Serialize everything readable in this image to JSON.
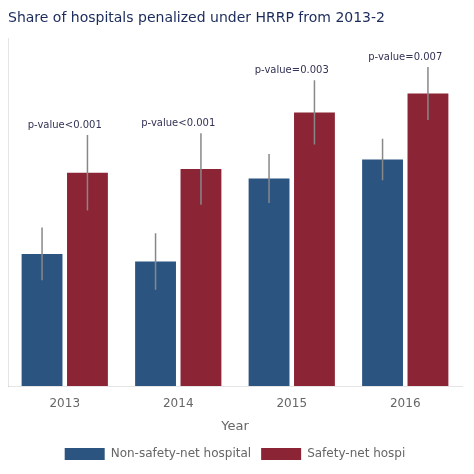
{
  "chart_data": {
    "type": "bar",
    "title": "Share of hospitals penalized under HRRP from 2013-2",
    "categories": [
      "2013",
      "2014",
      "2015",
      "2016"
    ],
    "xlabel": "Year",
    "series": [
      {
        "name": "Non-safety-net hospital",
        "color": "#2B5480",
        "values": [
          0.35,
          0.33,
          0.55,
          0.6
        ],
        "errors": [
          0.07,
          0.075,
          0.065,
          0.055
        ]
      },
      {
        "name": "Safety-net hospi",
        "color": "#8B2535",
        "values": [
          0.565,
          0.575,
          0.725,
          0.775
        ],
        "errors": [
          0.1,
          0.095,
          0.085,
          0.07
        ]
      }
    ],
    "annotations": [
      "p-value<0.001",
      "p-value<0.001",
      "p-value=0.003",
      "p-value=0.007"
    ],
    "ylim": [
      0,
      0.92
    ],
    "yticks": [],
    "grid": false,
    "legend": "bottom",
    "tick_labels": "x"
  }
}
